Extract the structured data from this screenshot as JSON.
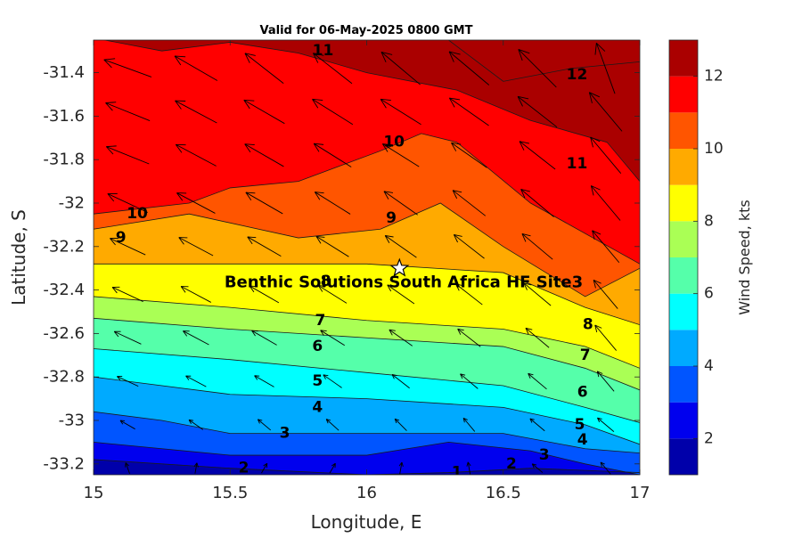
{
  "chart_data": {
    "type": "heatmap",
    "subtype": "filled-contour-with-vectors",
    "title": "Valid for 06-May-2025 0800 GMT",
    "xlabel": "Longitude, E",
    "ylabel": "Latitude, S",
    "xlim": [
      15,
      17
    ],
    "ylim": [
      -33.25,
      -31.25
    ],
    "x_ticks": [
      15,
      15.5,
      16,
      16.5,
      17
    ],
    "x_tick_labels": [
      "15",
      "15.5",
      "16",
      "16.5",
      "17"
    ],
    "y_ticks": [
      -31.4,
      -31.6,
      -31.8,
      -32,
      -32.2,
      -32.4,
      -32.6,
      -32.8,
      -33,
      -33.2
    ],
    "y_tick_labels": [
      "-31.4",
      "-31.6",
      "-31.8",
      "-32",
      "-32.2",
      "-32.4",
      "-32.6",
      "-32.8",
      "-33",
      "-33.2"
    ],
    "colorbar": {
      "label": "Wind Speed, kts",
      "range": [
        1,
        13
      ],
      "ticks": [
        2,
        4,
        6,
        8,
        10,
        12
      ],
      "tick_labels": [
        "2",
        "4",
        "6",
        "8",
        "10",
        "12"
      ],
      "levels": [
        1,
        2,
        3,
        4,
        5,
        6,
        7,
        8,
        9,
        10,
        11,
        12,
        13
      ],
      "colors": [
        "#0000AA",
        "#0000EE",
        "#0055FF",
        "#00AAFF",
        "#00FFFF",
        "#55FFAA",
        "#AAFF55",
        "#FFFF00",
        "#FFAA00",
        "#FF5500",
        "#FF0000",
        "#AA0000"
      ]
    },
    "contours": [
      {
        "level": 1,
        "points": [
          [
            15.0,
            -33.18
          ],
          [
            15.5,
            -33.22
          ],
          [
            16.0,
            -33.25
          ],
          [
            16.3,
            -33.24
          ],
          [
            16.6,
            -33.22
          ],
          [
            17.0,
            -33.24
          ]
        ]
      },
      {
        "level": 2,
        "points": [
          [
            15.0,
            -33.1
          ],
          [
            15.5,
            -33.16
          ],
          [
            16.0,
            -33.16
          ],
          [
            16.3,
            -33.1
          ],
          [
            16.6,
            -33.14
          ],
          [
            16.8,
            -33.2
          ],
          [
            17.0,
            -33.25
          ]
        ]
      },
      {
        "level": 3,
        "points": [
          [
            15.0,
            -32.96
          ],
          [
            15.25,
            -33.0
          ],
          [
            15.5,
            -33.06
          ],
          [
            16.0,
            -33.06
          ],
          [
            16.5,
            -33.06
          ],
          [
            16.8,
            -33.13
          ],
          [
            17.0,
            -33.15
          ]
        ]
      },
      {
        "level": 4,
        "points": [
          [
            15.0,
            -32.8
          ],
          [
            15.5,
            -32.88
          ],
          [
            16.0,
            -32.9
          ],
          [
            16.5,
            -32.94
          ],
          [
            16.8,
            -33.02
          ],
          [
            17.0,
            -33.11
          ]
        ]
      },
      {
        "level": 5,
        "points": [
          [
            15.0,
            -32.67
          ],
          [
            15.5,
            -32.72
          ],
          [
            16.0,
            -32.78
          ],
          [
            16.5,
            -32.84
          ],
          [
            16.8,
            -32.94
          ],
          [
            17.0,
            -33.01
          ]
        ]
      },
      {
        "level": 6,
        "points": [
          [
            15.0,
            -32.53
          ],
          [
            15.5,
            -32.58
          ],
          [
            16.0,
            -32.62
          ],
          [
            16.5,
            -32.66
          ],
          [
            16.8,
            -32.76
          ],
          [
            17.0,
            -32.86
          ]
        ]
      },
      {
        "level": 7,
        "points": [
          [
            15.0,
            -32.43
          ],
          [
            15.5,
            -32.48
          ],
          [
            16.0,
            -32.54
          ],
          [
            16.5,
            -32.58
          ],
          [
            16.8,
            -32.66
          ],
          [
            17.0,
            -32.76
          ]
        ]
      },
      {
        "level": 8,
        "points": [
          [
            15.0,
            -32.28
          ],
          [
            15.5,
            -32.28
          ],
          [
            16.0,
            -32.28
          ],
          [
            16.5,
            -32.32
          ],
          [
            16.8,
            -32.48
          ],
          [
            17.0,
            -32.56
          ]
        ]
      },
      {
        "level": 9,
        "points": [
          [
            15.0,
            -32.12
          ],
          [
            15.35,
            -32.05
          ],
          [
            15.75,
            -32.16
          ],
          [
            16.05,
            -32.12
          ],
          [
            16.27,
            -32.0
          ],
          [
            16.5,
            -32.2
          ],
          [
            16.8,
            -32.43
          ],
          [
            17.0,
            -32.3
          ]
        ]
      },
      {
        "level": 10,
        "points": [
          [
            15.0,
            -32.05
          ],
          [
            15.35,
            -32.0
          ],
          [
            15.5,
            -31.93
          ],
          [
            15.75,
            -31.9
          ],
          [
            16.05,
            -31.76
          ],
          [
            16.2,
            -31.68
          ],
          [
            16.33,
            -31.72
          ],
          [
            16.6,
            -32.0
          ],
          [
            17.0,
            -32.28
          ]
        ]
      },
      {
        "level": 11,
        "points": [
          [
            15.0,
            -31.24
          ],
          [
            15.25,
            -31.3
          ],
          [
            15.5,
            -31.26
          ],
          [
            15.75,
            -31.31
          ],
          [
            16.0,
            -31.4
          ],
          [
            16.33,
            -31.48
          ],
          [
            16.6,
            -31.62
          ],
          [
            16.88,
            -31.72
          ],
          [
            17.0,
            -31.9
          ]
        ]
      },
      {
        "level": 12,
        "points": [
          [
            16.3,
            -31.25
          ],
          [
            16.5,
            -31.44
          ],
          [
            16.75,
            -31.38
          ],
          [
            17.0,
            -31.35
          ]
        ]
      }
    ],
    "contour_labels": [
      {
        "text": "1",
        "x": 16.33,
        "y": -33.24
      },
      {
        "text": "2",
        "x": 15.55,
        "y": -33.22
      },
      {
        "text": "2",
        "x": 16.53,
        "y": -33.2
      },
      {
        "text": "3",
        "x": 15.7,
        "y": -33.06
      },
      {
        "text": "3",
        "x": 16.65,
        "y": -33.16
      },
      {
        "text": "4",
        "x": 15.82,
        "y": -32.94
      },
      {
        "text": "4",
        "x": 16.79,
        "y": -33.09
      },
      {
        "text": "5",
        "x": 15.82,
        "y": -32.82
      },
      {
        "text": "5",
        "x": 16.78,
        "y": -33.02
      },
      {
        "text": "6",
        "x": 15.82,
        "y": -32.66
      },
      {
        "text": "6",
        "x": 16.79,
        "y": -32.87
      },
      {
        "text": "7",
        "x": 15.83,
        "y": -32.54
      },
      {
        "text": "7",
        "x": 16.8,
        "y": -32.7
      },
      {
        "text": "8",
        "x": 15.85,
        "y": -32.36
      },
      {
        "text": "8",
        "x": 16.81,
        "y": -32.56
      },
      {
        "text": "9",
        "x": 15.1,
        "y": -32.16
      },
      {
        "text": "9",
        "x": 16.09,
        "y": -32.07
      },
      {
        "text": "10",
        "x": 15.16,
        "y": -32.05
      },
      {
        "text": "10",
        "x": 16.1,
        "y": -31.72
      },
      {
        "text": "11",
        "x": 15.84,
        "y": -31.3
      },
      {
        "text": "11",
        "x": 16.77,
        "y": -31.82
      },
      {
        "text": "12",
        "x": 16.77,
        "y": -31.41
      }
    ],
    "vectors": {
      "grid_x": [
        15.125,
        15.375,
        15.625,
        15.875,
        16.125,
        16.375,
        16.625,
        16.875
      ],
      "grid_y": [
        -31.38,
        -31.58,
        -31.78,
        -32.0,
        -32.2,
        -32.42,
        -32.62,
        -32.82,
        -33.02,
        -33.22
      ],
      "speed_kts": [
        [
          11.5,
          11.2,
          11.1,
          11.2,
          11.6,
          11.9,
          12.3,
          12.4
        ],
        [
          10.8,
          10.7,
          10.6,
          10.8,
          10.8,
          10.9,
          11.3,
          11.6
        ],
        [
          10.4,
          10.3,
          10.1,
          9.9,
          9.6,
          9.7,
          10.2,
          10.7
        ],
        [
          9.9,
          9.7,
          9.5,
          9.3,
          9.1,
          9.2,
          9.6,
          10.2
        ],
        [
          8.6,
          8.5,
          8.5,
          8.4,
          8.4,
          8.5,
          8.8,
          9.3
        ],
        [
          7.3,
          7.3,
          7.2,
          7.1,
          7.0,
          7.2,
          7.6,
          8.2
        ],
        [
          6.2,
          6.1,
          6.0,
          5.9,
          5.8,
          6.0,
          6.4,
          7.1
        ],
        [
          4.6,
          4.5,
          4.4,
          4.4,
          4.3,
          4.5,
          4.8,
          5.3
        ],
        [
          3.0,
          3.0,
          2.9,
          2.9,
          2.9,
          3.1,
          3.5,
          4.1
        ],
        [
          1.6,
          1.4,
          1.5,
          1.5,
          1.7,
          1.8,
          2.1,
          2.6
        ]
      ],
      "direction_deg_from": [
        [
          110,
          120,
          128,
          128,
          130,
          130,
          135,
          160
        ],
        [
          112,
          118,
          120,
          122,
          122,
          125,
          128,
          140
        ],
        [
          112,
          118,
          120,
          122,
          122,
          125,
          128,
          140
        ],
        [
          115,
          118,
          120,
          122,
          125,
          128,
          130,
          140
        ],
        [
          115,
          118,
          120,
          122,
          125,
          128,
          130,
          140
        ],
        [
          115,
          118,
          120,
          122,
          125,
          128,
          130,
          140
        ],
        [
          115,
          118,
          120,
          122,
          125,
          128,
          130,
          140
        ],
        [
          115,
          118,
          120,
          125,
          128,
          130,
          130,
          140
        ],
        [
          120,
          125,
          130,
          132,
          135,
          140,
          130,
          130
        ],
        [
          160,
          190,
          210,
          210,
          190,
          170,
          130,
          140
        ]
      ]
    },
    "marker": {
      "label": "Benthic Solutions South Africa HF Site3",
      "lon": 16.12,
      "lat": -32.3,
      "shape": "star"
    }
  }
}
